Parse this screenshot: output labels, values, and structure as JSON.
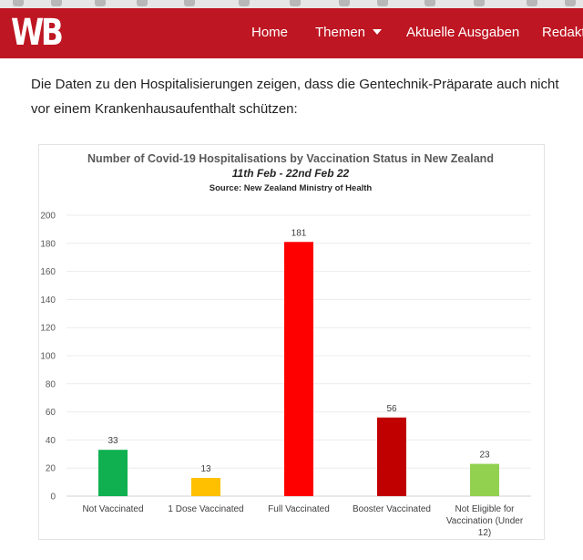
{
  "header": {
    "logo": "WB",
    "nav": {
      "home": "Home",
      "themen": "Themen",
      "aktuelle": "Aktuelle Ausgaben",
      "redakt": "Redakt"
    },
    "brand_color": "#be1622"
  },
  "article": {
    "paragraph": "Die Daten zu den Hospitalisierungen zeigen, dass die Gentechnik-Präparate auch nicht vor einem Krankenhausaufenthalt schützen:"
  },
  "chart_data": {
    "type": "bar",
    "title": "Number of Covid-19 Hospitalisations by Vaccination Status in New Zealand",
    "subtitle": "11th Feb - 22nd Feb 22",
    "source": "Source: New Zealand Ministry of Health",
    "categories": [
      "Not Vaccinated",
      "1 Dose Vaccinated",
      "Full Vaccinated",
      "Booster Vaccinated",
      "Not Eligible for Vaccination (Under 12)"
    ],
    "category_lines": [
      [
        "Not Vaccinated"
      ],
      [
        "1 Dose Vaccinated"
      ],
      [
        "Full Vaccinated"
      ],
      [
        "Booster Vaccinated"
      ],
      [
        "Not Eligible for",
        "Vaccination (Under",
        "12)"
      ]
    ],
    "values": [
      33,
      13,
      181,
      56,
      23
    ],
    "colors": [
      "#10b050",
      "#ffc000",
      "#ff0000",
      "#c00000",
      "#92d050"
    ],
    "ylim": [
      0,
      200
    ],
    "yticks": [
      0,
      20,
      40,
      60,
      80,
      100,
      120,
      140,
      160,
      180,
      200
    ],
    "grid": true,
    "legend": "none"
  }
}
